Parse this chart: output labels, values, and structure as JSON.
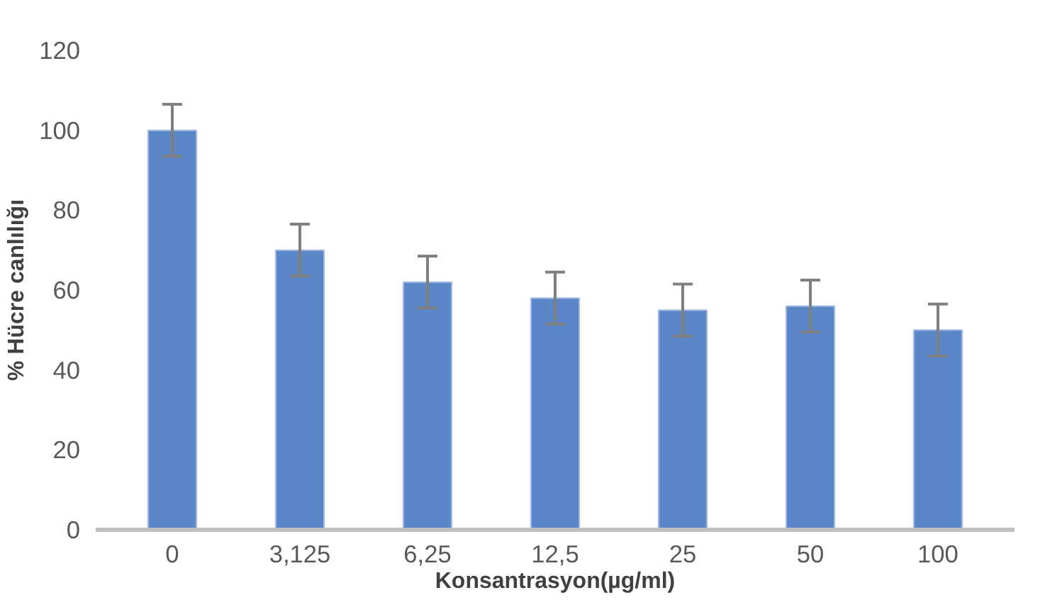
{
  "chart_data": {
    "type": "bar",
    "xlabel": "Konsantrasyon(µg/ml)",
    "ylabel": "% Hücre canlılığı",
    "categories": [
      "0",
      "3,125",
      "6,25",
      "12,5",
      "25",
      "50",
      "100"
    ],
    "values": [
      100,
      70,
      62,
      58,
      55,
      56,
      50
    ],
    "errors": [
      6.5,
      6.5,
      6.5,
      6.5,
      6.5,
      6.5,
      6.5
    ],
    "color": "#5b87c8",
    "ylim": [
      0,
      120
    ],
    "yticks": [
      0,
      20,
      40,
      60,
      80,
      100,
      120
    ],
    "grid": false
  }
}
